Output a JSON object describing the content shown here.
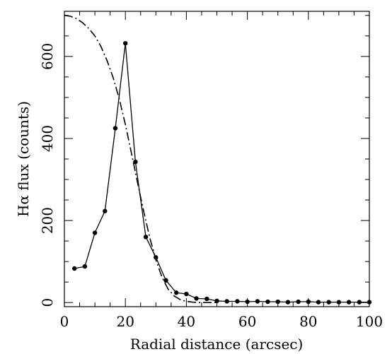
{
  "chart_data": {
    "type": "line",
    "title": "",
    "xlabel": "Radial distance (arcsec)",
    "ylabel": "Hα flux (counts)",
    "xlim": [
      0,
      100
    ],
    "ylim": [
      -10,
      710
    ],
    "xticks": [
      0,
      20,
      40,
      60,
      80,
      100
    ],
    "yticks": [
      0,
      200,
      400,
      600
    ],
    "grid": false,
    "legend": "none",
    "series": [
      {
        "style": "solid-with-markers",
        "color": "#000000",
        "x": [
          3.3,
          6.7,
          10.0,
          13.3,
          16.7,
          20.0,
          23.3,
          26.7,
          30.0,
          33.3,
          36.7,
          40.0,
          43.3,
          46.7,
          50.0,
          53.3,
          56.7,
          60.0,
          63.3,
          66.7,
          70.0,
          73.3,
          76.7,
          80.0,
          83.3,
          86.7,
          90.0,
          93.3,
          96.7,
          100.0
        ],
        "y": [
          83,
          88,
          170,
          223,
          425,
          632,
          343,
          160,
          110,
          54,
          24,
          21,
          10,
          9,
          4,
          3,
          3,
          2,
          3,
          2,
          2,
          1,
          2,
          2,
          1,
          1,
          1,
          1,
          1,
          1
        ]
      },
      {
        "style": "dash-dot",
        "color": "#000000",
        "x": [
          0,
          2,
          4,
          6,
          8,
          10,
          12,
          14,
          16,
          18,
          20,
          22,
          24,
          26,
          28,
          30,
          32,
          34,
          36,
          38,
          40,
          42,
          44,
          46,
          48,
          50
        ],
        "y": [
          700,
          698,
          692,
          682,
          668,
          650,
          624,
          590,
          548,
          496,
          434,
          364,
          292,
          222,
          158,
          104,
          62,
          33,
          16,
          7,
          3,
          1,
          0,
          0,
          0,
          0
        ]
      }
    ]
  }
}
